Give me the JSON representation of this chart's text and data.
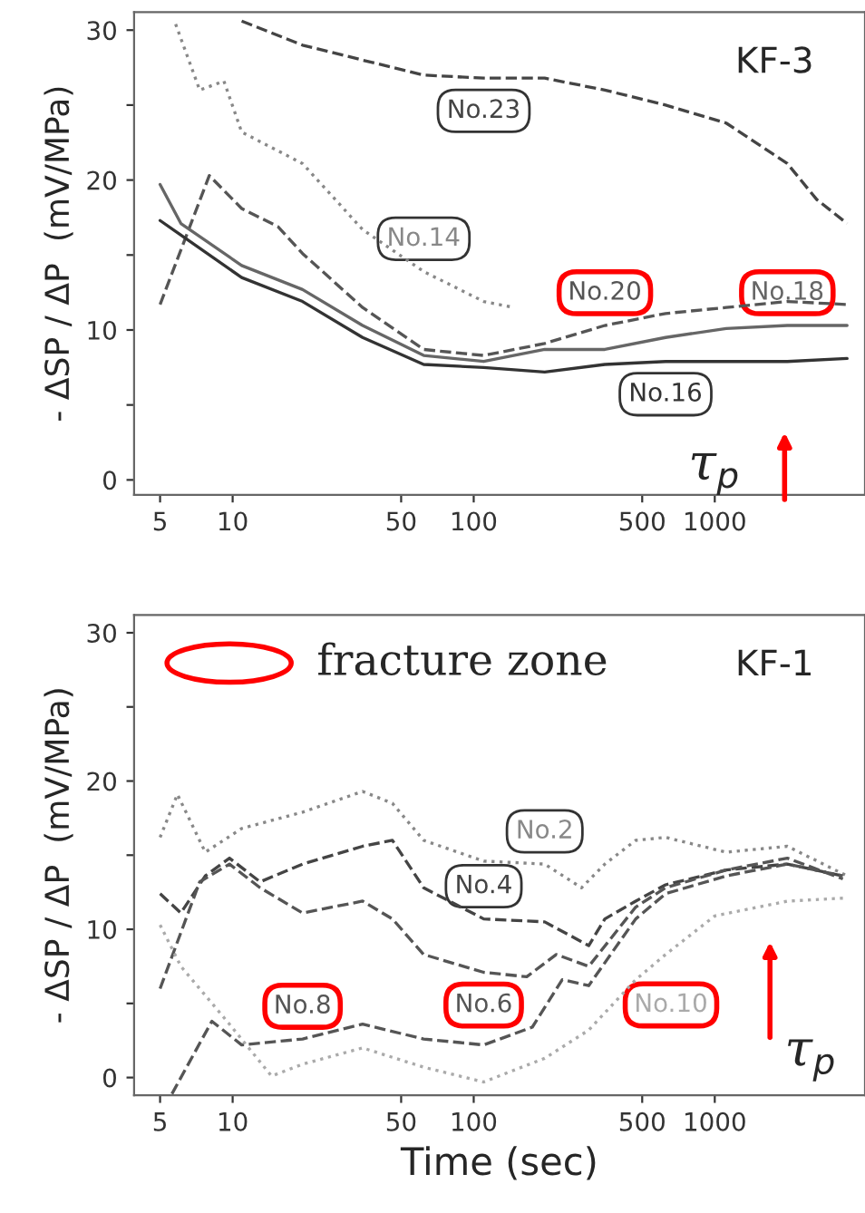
{
  "chart_data": [
    {
      "type": "line",
      "title": "KF-3",
      "ylabel": "- ΔSP / ΔP  (mV/MPa)",
      "log": "x",
      "xlim": [
        3.9,
        4200
      ],
      "xticks": [
        5,
        10,
        50,
        100,
        500,
        1000
      ],
      "ylim": [
        -1,
        31.2
      ],
      "yticks": [
        0,
        {
          "value": 5,
          "label": null
        },
        10,
        {
          "value": 15,
          "label": null
        },
        20,
        {
          "value": 25,
          "label": null
        },
        30
      ],
      "grid": false,
      "tick_labels": true,
      "annotations": [
        "τ$_{p}$"
      ],
      "series": [
        {
          "name": "No.23",
          "color": "#444444",
          "line_style": "dashed",
          "x": [
            10.9,
            19.5,
            34.6,
            62,
            110,
            197,
            350,
            625,
            1115,
            2000,
            2650,
            3540
          ],
          "values": [
            30.6,
            29.0,
            28.0,
            27.0,
            26.8,
            26.8,
            26.0,
            25.0,
            23.8,
            21.1,
            18.7,
            17.1
          ]
        },
        {
          "name": "No.14",
          "color": "#888888",
          "line_style": "dotted",
          "x": [
            5.8,
            7.3,
            9.2,
            10.9,
            19.5,
            34.6,
            62,
            110,
            147
          ],
          "values": [
            30.4,
            26.0,
            26.6,
            23.2,
            21.1,
            16.7,
            13.9,
            11.9,
            11.5
          ]
        },
        {
          "name": "No.20",
          "color": "#555555",
          "line_style": "dashed",
          "x": [
            5,
            8,
            10.9,
            15.4,
            19.5,
            34.6,
            62,
            110,
            197,
            350,
            625,
            1115,
            2000,
            3540
          ],
          "values": [
            11.7,
            20.3,
            18.1,
            16.9,
            15.1,
            11.5,
            8.7,
            8.3,
            9.1,
            10.3,
            11.1,
            11.5,
            11.9,
            11.7
          ]
        },
        {
          "name": "No.18",
          "color": "#666666",
          "line_style": "solid",
          "x": [
            5,
            6.1,
            10.9,
            19.5,
            34.6,
            62,
            110,
            197,
            350,
            625,
            1115,
            2000,
            3540
          ],
          "values": [
            19.7,
            17.1,
            14.3,
            12.7,
            10.3,
            8.3,
            7.9,
            8.7,
            8.7,
            9.5,
            10.1,
            10.3,
            10.3
          ]
        },
        {
          "name": "No.16",
          "color": "#333333",
          "line_style": "solid",
          "x": [
            5,
            10.9,
            19.5,
            34.6,
            62,
            110,
            197,
            350,
            625,
            1115,
            2000,
            3540
          ],
          "values": [
            17.3,
            13.5,
            11.9,
            9.5,
            7.7,
            7.5,
            7.2,
            7.7,
            7.9,
            7.9,
            7.9,
            8.1
          ]
        }
      ]
    },
    {
      "type": "line",
      "title": "KF-1",
      "xlabel": "Time (sec)",
      "ylabel": "- ΔSP / ΔP  (mV/MPa)",
      "log": "x",
      "xlim": [
        3.9,
        4200
      ],
      "xticks": [
        5,
        10,
        50,
        100,
        500,
        1000
      ],
      "ylim": [
        -1.2,
        31.2
      ],
      "yticks": [
        0,
        {
          "value": 5,
          "label": null
        },
        10,
        {
          "value": 15,
          "label": null
        },
        20,
        {
          "value": 25,
          "label": null
        },
        30
      ],
      "grid": false,
      "annotations": [
        "fracture zone",
        "τ$_{p}$"
      ],
      "series": [
        {
          "name": "No.2",
          "color": "#888888",
          "line_style": "dotted",
          "x": [
            5,
            5.9,
            7.7,
            10.9,
            19.5,
            34.6,
            46,
            62,
            110,
            197,
            280,
            350,
            470,
            625,
            1115,
            2000,
            3540
          ],
          "values": [
            16.2,
            19.1,
            15.2,
            16.8,
            17.9,
            19.3,
            18.5,
            16.0,
            14.6,
            14.4,
            12.8,
            14.4,
            16.0,
            16.2,
            15.2,
            15.6,
            13.6
          ]
        },
        {
          "name": "No.4",
          "color": "#444444",
          "line_style": "dashed",
          "x": [
            5,
            6.1,
            7.7,
            9.7,
            13,
            19.5,
            34.6,
            46,
            62,
            110,
            197,
            300,
            350,
            470,
            625,
            1115,
            2000,
            3400
          ],
          "values": [
            12.4,
            11.1,
            13.6,
            14.8,
            13.2,
            14.4,
            15.6,
            16.0,
            12.8,
            10.7,
            10.5,
            8.9,
            10.7,
            11.9,
            13.0,
            14.0,
            14.4,
            13.6
          ]
        },
        {
          "name": "No.6",
          "color": "#555555",
          "line_style": "dashed",
          "x": [
            5,
            7.3,
            9.7,
            13,
            19.5,
            34.6,
            46,
            62,
            110,
            166,
            220,
            300,
            470,
            625,
            1115,
            2000,
            3400
          ],
          "values": [
            6.0,
            13.2,
            14.4,
            12.8,
            11.1,
            11.9,
            10.7,
            8.3,
            7.1,
            6.8,
            8.3,
            7.5,
            11.5,
            12.8,
            14.0,
            14.8,
            13.4
          ]
        },
        {
          "name": "No.8",
          "color": "#555555",
          "line_style": "dashed",
          "x": [
            5.6,
            8.2,
            10.9,
            19.5,
            34.6,
            62,
            110,
            175,
            233,
            300,
            470,
            625,
            1115,
            2000,
            3400
          ],
          "values": [
            -1.1,
            3.8,
            2.2,
            2.6,
            3.6,
            2.6,
            2.2,
            3.4,
            6.6,
            6.2,
            10.7,
            12.4,
            13.6,
            14.4,
            13.6
          ]
        },
        {
          "name": "No.10",
          "color": "#aaaaaa",
          "line_style": "dotted",
          "x": [
            5,
            6.1,
            9.7,
            14.5,
            19.5,
            34.6,
            62,
            110,
            197,
            300,
            470,
            625,
            1000,
            2000,
            3400
          ],
          "values": [
            10.3,
            7.5,
            3.6,
            0.1,
            0.9,
            2.0,
            0.7,
            -0.3,
            1.3,
            3.2,
            6.6,
            8.3,
            10.9,
            11.9,
            12.1
          ]
        }
      ]
    }
  ]
}
